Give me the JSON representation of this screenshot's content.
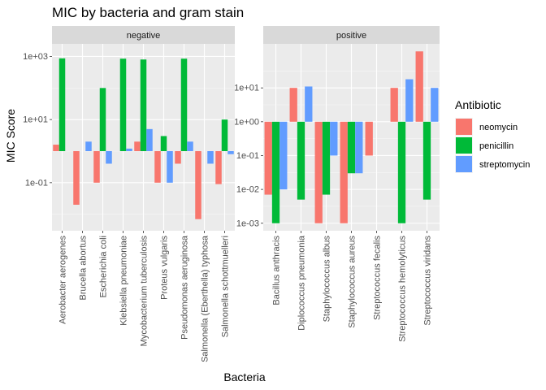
{
  "chart_data": {
    "type": "bar",
    "title": "MIC by bacteria and gram stain",
    "xlabel": "Bacteria",
    "ylabel": "MIC Score",
    "yscale": "log10",
    "bar_baseline": 1,
    "grid": true,
    "legend": {
      "title": "Antibiotic",
      "placement": "right",
      "entries": [
        "neomycin",
        "penicillin",
        "streptomycin"
      ],
      "colors": [
        "#F8766D",
        "#00BA38",
        "#619CFF"
      ]
    },
    "facets": [
      {
        "label": "negative",
        "ylim": [
          0.003,
          2500
        ],
        "yticks": [
          {
            "value": 0.1,
            "label": "1e-01"
          },
          {
            "value": 10,
            "label": "1e+01"
          },
          {
            "value": 1000,
            "label": "1e+03"
          }
        ],
        "categories": [
          "Aerobacter aerogenes",
          "Brucella abortus",
          "Escherichia coli",
          "Klebsiella pneumoniae",
          "Mycobacterium tuberculosis",
          "Proteus vulgaris",
          "Pseudomonas aeruginosa",
          "Salmonella (Eberthella) typhosa",
          "Salmonella schottmuelleri"
        ],
        "series": [
          {
            "name": "neomycin",
            "values": [
              1.6,
              0.02,
              0.1,
              1.0,
              2.0,
              0.1,
              0.4,
              0.007,
              0.09
            ]
          },
          {
            "name": "penicillin",
            "values": [
              870,
              1.0,
              100,
              850,
              800,
              3,
              850,
              1.0,
              10
            ]
          },
          {
            "name": "streptomycin",
            "values": [
              1.0,
              2.0,
              0.4,
              1.2,
              5.0,
              0.1,
              2.0,
              0.4,
              0.8
            ]
          }
        ]
      },
      {
        "label": "positive",
        "ylim": [
          0.0006,
          200
        ],
        "yticks": [
          {
            "value": 0.001,
            "label": "1e-03"
          },
          {
            "value": 0.01,
            "label": "1e-02"
          },
          {
            "value": 0.1,
            "label": "1e-01"
          },
          {
            "value": 1,
            "label": "1e+00"
          },
          {
            "value": 10,
            "label": "1e+01"
          }
        ],
        "categories": [
          "Bacillus anthracis",
          "Diplococcus pneumonia",
          "Staphylococcus albus",
          "Staphylococcus aureus",
          "Streptococcus fecalis",
          "Streptococcus hemolyticus",
          "Streptococcus viridans"
        ],
        "series": [
          {
            "name": "neomycin",
            "values": [
              0.007,
              10,
              0.001,
              0.001,
              0.1,
              10,
              120
            ]
          },
          {
            "name": "penicillin",
            "values": [
              0.001,
              0.005,
              0.007,
              0.03,
              1,
              0.001,
              0.005
            ]
          },
          {
            "name": "streptomycin",
            "values": [
              0.01,
              11,
              0.1,
              0.03,
              1,
              18,
              10
            ]
          }
        ]
      }
    ]
  }
}
